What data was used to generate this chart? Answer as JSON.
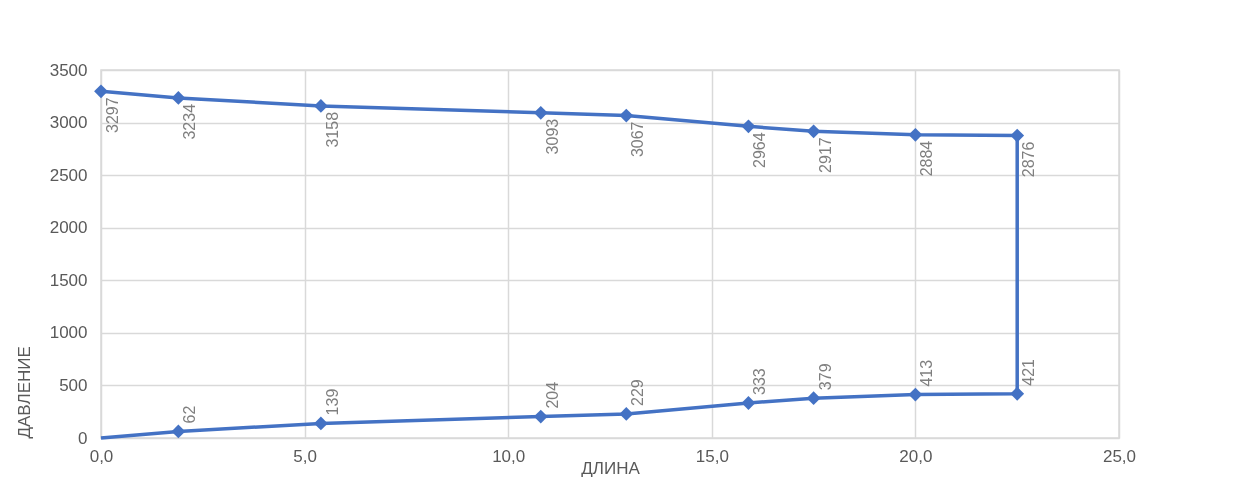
{
  "chart_data": {
    "type": "line",
    "xlabel": "ДЛИНА",
    "ylabel": "ДАВЛЕНИЕ",
    "x": [
      0,
      1.9,
      5.4,
      10.8,
      12.9,
      15.9,
      17.5,
      20.0,
      22.5,
      22.5,
      20.0,
      17.5,
      15.9,
      12.9,
      10.8,
      5.4,
      1.9,
      0
    ],
    "series": [
      {
        "color": "#4472c4",
        "values": [
          3297,
          3234,
          3158,
          3093,
          3067,
          2964,
          2917,
          2884,
          2876,
          421,
          413,
          379,
          333,
          229,
          204,
          139,
          62,
          0
        ],
        "value_labels": [
          "3297",
          "3234",
          "3158",
          "3093",
          "3067",
          "2964",
          "2917",
          "2884",
          "2876",
          "421",
          "413",
          "379",
          "333",
          "229",
          "204",
          "139",
          "62",
          null
        ]
      }
    ],
    "xlim": [
      0,
      25
    ],
    "xticks": [
      {
        "value": 0,
        "label": "0,0"
      },
      {
        "value": 5,
        "label": "5,0"
      },
      {
        "value": 10,
        "label": "10,0"
      },
      {
        "value": 15,
        "label": "15,0"
      },
      {
        "value": 20,
        "label": "20,0"
      },
      {
        "value": 25,
        "label": "25,0"
      }
    ],
    "ylim": [
      0,
      3500
    ],
    "yticks": [
      0,
      500,
      1000,
      1500,
      2000,
      2500,
      3000,
      3500
    ],
    "grid": true,
    "marker": "diamond",
    "line_style": "solid"
  }
}
